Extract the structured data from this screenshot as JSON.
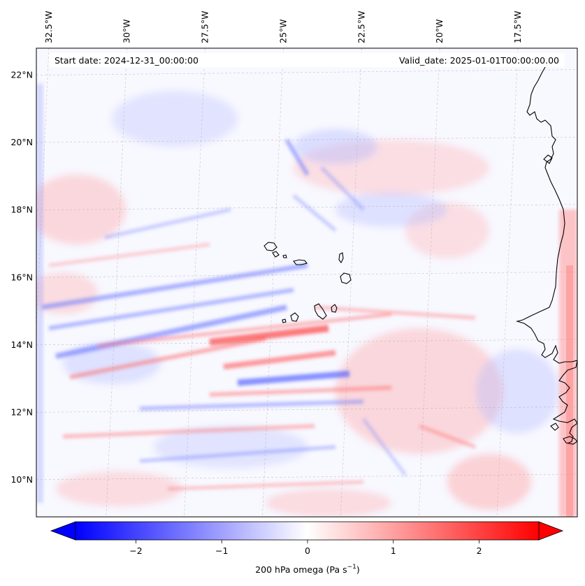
{
  "map": {
    "start_label": "Start date: 2024-12-31_00:00:00",
    "valid_label": "Valid_date: 2025-01-01T00:00:00.00",
    "lon_ticks": [
      {
        "lon": -32.5,
        "label": "32.5°W"
      },
      {
        "lon": -30.0,
        "label": "30°W"
      },
      {
        "lon": -27.5,
        "label": "27.5°W"
      },
      {
        "lon": -25.0,
        "label": "25°W"
      },
      {
        "lon": -22.5,
        "label": "22.5°W"
      },
      {
        "lon": -20.0,
        "label": "20°W"
      },
      {
        "lon": -17.5,
        "label": "17.5°W"
      }
    ],
    "lat_ticks": [
      {
        "lat": 22,
        "label": "22°N"
      },
      {
        "lat": 20,
        "label": "20°N"
      },
      {
        "lat": 18,
        "label": "18°N"
      },
      {
        "lat": 16,
        "label": "16°N"
      },
      {
        "lat": 14,
        "label": "14°N"
      },
      {
        "lat": 12,
        "label": "12°N"
      },
      {
        "lat": 10,
        "label": "10°N"
      }
    ],
    "lon_range": [
      -32.9,
      -15.6
    ],
    "lat_range": [
      8.9,
      22.8
    ],
    "gridlines": true
  },
  "colorbar": {
    "label_prefix": "200 hPa omega (Pa s",
    "label_exp": "−1",
    "label_suffix": ")",
    "range": [
      -2.7,
      2.7
    ],
    "extend": "both",
    "ticks": [
      {
        "value": -2,
        "label": "−2"
      },
      {
        "value": -1,
        "label": "−1"
      },
      {
        "value": 0,
        "label": "0"
      },
      {
        "value": 1,
        "label": "1"
      },
      {
        "value": 2,
        "label": "2"
      }
    ],
    "color_min": "#0000ff",
    "color_mid": "#ffffff",
    "color_max": "#ff0000"
  },
  "colors": {
    "negative": "#4a5cff",
    "positive": "#ff4a4a",
    "coast": "#000000"
  }
}
